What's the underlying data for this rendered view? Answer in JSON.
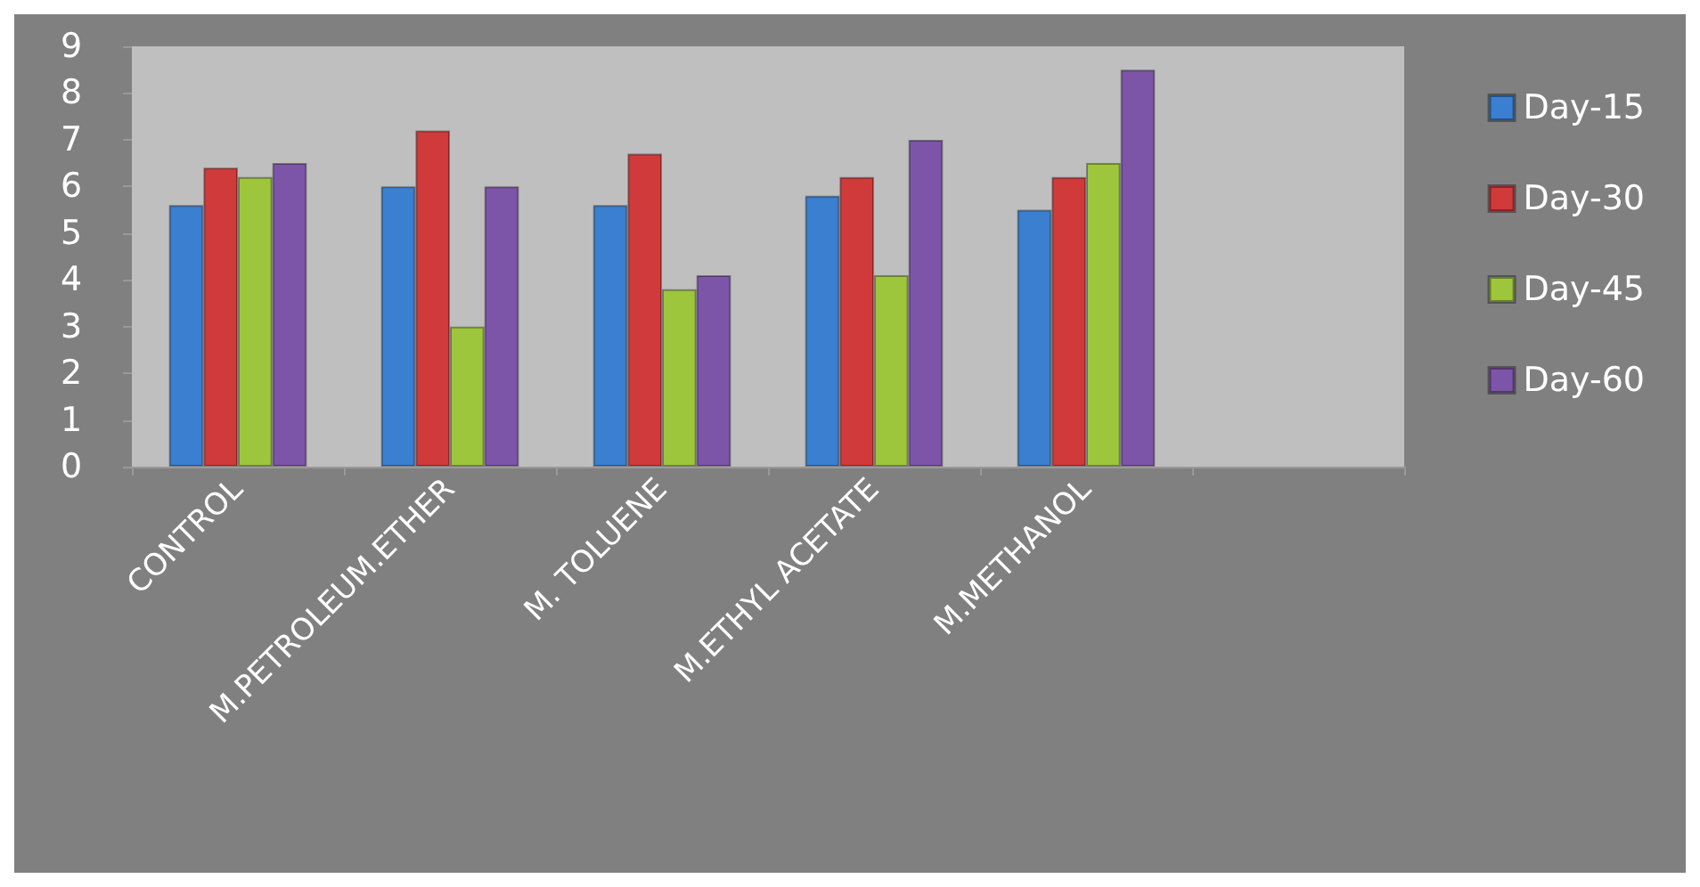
{
  "chart_data": {
    "type": "bar",
    "categories": [
      "CONTROL",
      "M.PETROLEUM.ETHER",
      "M. TOLUENE",
      "M.ETHYL ACETATE",
      "M.METHANOL",
      null
    ],
    "series": [
      {
        "name": "Day-15",
        "color": "#3a7fd0",
        "values": [
          5.6,
          6.0,
          5.6,
          5.8,
          5.5,
          null
        ]
      },
      {
        "name": "Day-30",
        "color": "#d03a3a",
        "values": [
          6.4,
          7.2,
          6.7,
          6.2,
          6.2,
          null
        ]
      },
      {
        "name": "Day-45",
        "color": "#9ec63c",
        "values": [
          6.2,
          3.0,
          3.8,
          4.1,
          6.5,
          null
        ]
      },
      {
        "name": "Day-60",
        "color": "#7d55a8",
        "values": [
          6.5,
          6.0,
          4.1,
          7.0,
          8.5,
          null
        ]
      }
    ],
    "ylim": [
      0,
      9
    ],
    "yticks": [
      0,
      1,
      2,
      3,
      4,
      5,
      6,
      7,
      8,
      9
    ],
    "grid": false,
    "legend": "right"
  }
}
